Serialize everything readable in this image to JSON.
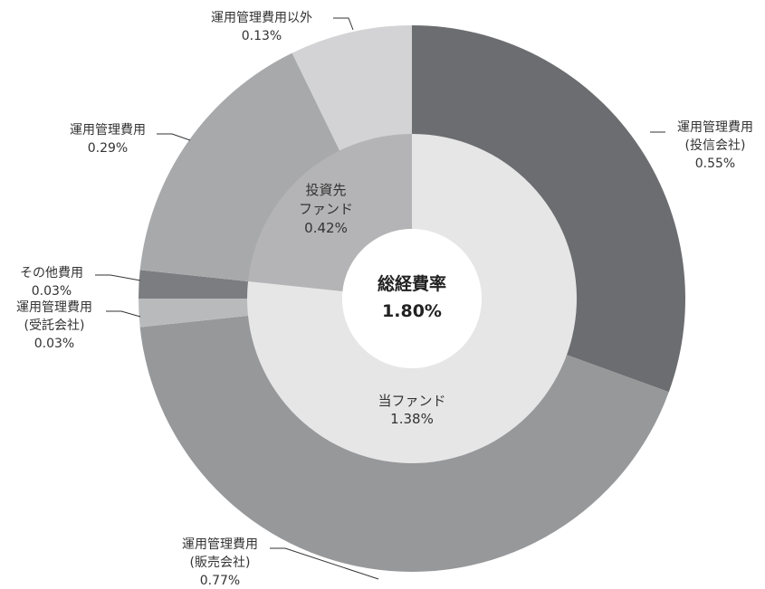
{
  "chart_data": {
    "type": "pie",
    "subtype": "nested-donut",
    "center": {
      "title": "総経費率",
      "value": "1.80%"
    },
    "inner_ring": [
      {
        "name": "当ファンド",
        "value": 1.38,
        "label": "1.38%",
        "color": "#e6e6e7"
      },
      {
        "name": "投資先ファンド",
        "value": 0.42,
        "label": "0.42%",
        "color": "#b4b4b6"
      }
    ],
    "outer_ring": [
      {
        "lines": [
          "運用管理費用",
          "(投信会社)"
        ],
        "value": 0.55,
        "label": "0.55%",
        "color": "#6c6d70",
        "parent": "当ファンド"
      },
      {
        "lines": [
          "運用管理費用",
          "(販売会社)"
        ],
        "value": 0.77,
        "label": "0.77%",
        "color": "#97989a",
        "parent": "当ファンド"
      },
      {
        "lines": [
          "運用管理費用",
          "(受託会社)"
        ],
        "value": 0.03,
        "label": "0.03%",
        "color": "#b9babc",
        "parent": "当ファンド"
      },
      {
        "lines": [
          "その他費用"
        ],
        "value": 0.03,
        "label": "0.03%",
        "color": "#7c7d80",
        "parent": "当ファンド"
      },
      {
        "lines": [
          "運用管理費用"
        ],
        "value": 0.29,
        "label": "0.29%",
        "color": "#a8a9ab",
        "parent": "投資先ファンド"
      },
      {
        "lines": [
          "運用管理費用以外"
        ],
        "value": 0.13,
        "label": "0.13%",
        "color": "#d3d3d5",
        "parent": "投資先ファンド"
      }
    ],
    "total": 1.8,
    "start": "12 o'clock",
    "direction": "clockwise",
    "legend": "none"
  }
}
